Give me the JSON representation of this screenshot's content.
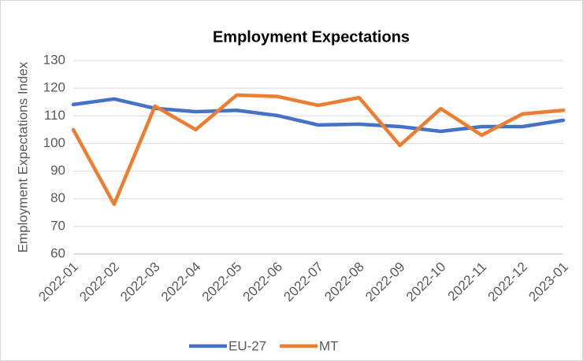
{
  "chart_data": {
    "type": "line",
    "title": "Employment Expectations",
    "y_label": "Employment Expectations Index",
    "categories": [
      "2022-01",
      "2022-02",
      "2022-03",
      "2022-04",
      "2022-05",
      "2022-06",
      "2022-07",
      "2022-08",
      "2022-09",
      "2022-10",
      "2022-11",
      "2022-12",
      "2023-01"
    ],
    "series": [
      {
        "name": "EU-27",
        "color": "#4472c4",
        "values": [
          114.1,
          116.1,
          112.7,
          111.5,
          112.0,
          110.1,
          106.7,
          107.0,
          106.1,
          104.4,
          106.1,
          106.1,
          108.4
        ]
      },
      {
        "name": "MT",
        "color": "#ed7d31",
        "values": [
          105.0,
          78.0,
          113.5,
          105.0,
          117.5,
          117.0,
          113.8,
          116.6,
          99.3,
          112.6,
          103.0,
          110.7,
          112.0
        ]
      }
    ],
    "ylim": [
      60,
      130
    ],
    "yticks": [
      60,
      70,
      80,
      90,
      100,
      110,
      120,
      130
    ],
    "grid": true,
    "legend": "bottom"
  }
}
